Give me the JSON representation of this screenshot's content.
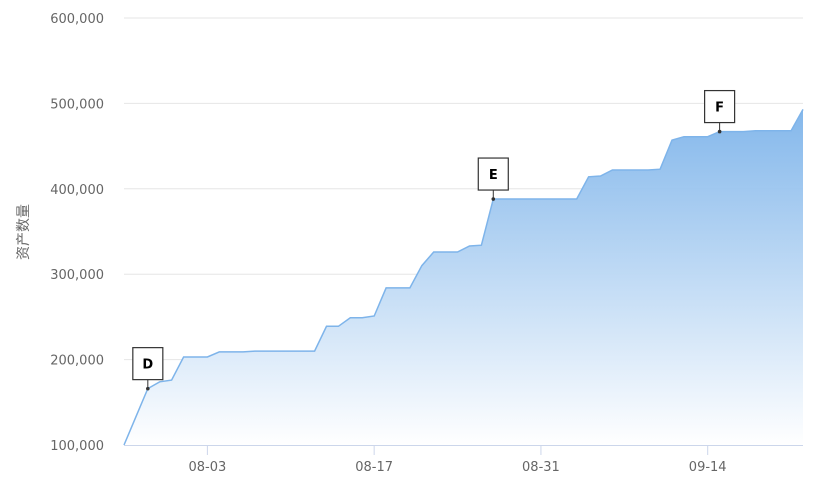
{
  "chart_data": {
    "type": "area",
    "title": "",
    "xlabel": "",
    "ylabel": "资产数量",
    "ylim": [
      100000,
      600000
    ],
    "yticks": [
      "100,000",
      "200,000",
      "300,000",
      "400,000",
      "500,000",
      "600,000"
    ],
    "ytick_values": [
      100000,
      200000,
      300000,
      400000,
      500000,
      600000
    ],
    "xticks": [
      "08-03",
      "08-17",
      "08-31",
      "09-14"
    ],
    "grid": true,
    "colors": {
      "line": "#7eb4ea",
      "fill_top": "#7eb4ea",
      "fill_bottom": "#ffffff",
      "grid": "#e6e6e6",
      "axis": "#ccd6eb"
    },
    "x": [
      "07-27",
      "07-28",
      "07-29",
      "07-30",
      "07-31",
      "08-01",
      "08-02",
      "08-03",
      "08-04",
      "08-05",
      "08-06",
      "08-07",
      "08-08",
      "08-09",
      "08-10",
      "08-11",
      "08-12",
      "08-13",
      "08-14",
      "08-15",
      "08-16",
      "08-17",
      "08-18",
      "08-19",
      "08-20",
      "08-21",
      "08-22",
      "08-23",
      "08-24",
      "08-25",
      "08-26",
      "08-27",
      "08-28",
      "08-29",
      "08-30",
      "08-31",
      "09-01",
      "09-02",
      "09-03",
      "09-04",
      "09-05",
      "09-06",
      "09-07",
      "09-08",
      "09-09",
      "09-10",
      "09-11",
      "09-12",
      "09-13",
      "09-14",
      "09-15",
      "09-16",
      "09-17",
      "09-18",
      "09-19",
      "09-20",
      "09-21",
      "09-22"
    ],
    "values": [
      100000,
      133000,
      166000,
      174000,
      176000,
      203000,
      203000,
      203000,
      209000,
      209000,
      209000,
      210000,
      210000,
      210000,
      210000,
      210000,
      210000,
      239000,
      239000,
      249000,
      249000,
      251000,
      284000,
      284000,
      284000,
      310000,
      326000,
      326000,
      326000,
      333000,
      334000,
      388000,
      388000,
      388000,
      388000,
      388000,
      388000,
      388000,
      388000,
      414000,
      415000,
      422000,
      422000,
      422000,
      422000,
      423000,
      457000,
      461000,
      461000,
      461000,
      467000,
      467000,
      467000,
      468000,
      468000,
      468000,
      468000,
      493000
    ],
    "annotations": [
      {
        "label": "D",
        "x": "07-29"
      },
      {
        "label": "E",
        "x": "08-27"
      },
      {
        "label": "F",
        "x": "09-15"
      }
    ]
  }
}
